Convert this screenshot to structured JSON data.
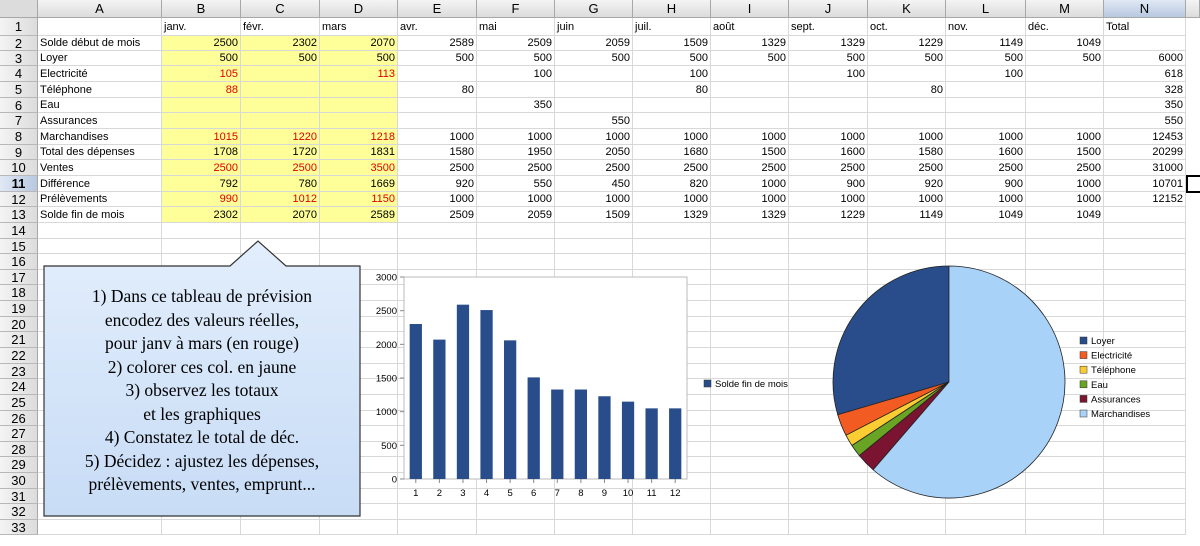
{
  "spreadsheet": {
    "columns": [
      "A",
      "B",
      "C",
      "D",
      "E",
      "F",
      "G",
      "H",
      "I",
      "J",
      "K",
      "L",
      "M",
      "N"
    ],
    "selected_column": "N",
    "selected_row": "11",
    "row_numbers": [
      "1",
      "2",
      "3",
      "4",
      "5",
      "6",
      "7",
      "8",
      "9",
      "10",
      "11",
      "12",
      "13",
      "14",
      "15",
      "16",
      "17",
      "18",
      "19",
      "20",
      "21",
      "22",
      "23",
      "24",
      "25",
      "26",
      "27",
      "28",
      "29",
      "30",
      "31",
      "32",
      "33"
    ],
    "month_headers": [
      "janv.",
      "févr.",
      "mars",
      "avr.",
      "mai",
      "juin",
      "juil.",
      "août",
      "sept.",
      "oct.",
      "nov.",
      "déc."
    ],
    "total_header": "Total",
    "rows": [
      {
        "label": "Solde début de mois",
        "values": [
          "2500",
          "2302",
          "2070",
          "2589",
          "2509",
          "2059",
          "1509",
          "1329",
          "1329",
          "1229",
          "1149",
          "1049"
        ],
        "red": [],
        "total": ""
      },
      {
        "label": "Loyer",
        "values": [
          "500",
          "500",
          "500",
          "500",
          "500",
          "500",
          "500",
          "500",
          "500",
          "500",
          "500",
          "500"
        ],
        "red": [],
        "total": "6000"
      },
      {
        "label": "Electricité",
        "values": [
          "105",
          "",
          "113",
          "",
          "100",
          "",
          "100",
          "",
          "100",
          "",
          "100",
          ""
        ],
        "red": [
          0,
          2
        ],
        "total": "618"
      },
      {
        "label": "Téléphone",
        "values": [
          "88",
          "",
          "",
          "80",
          "",
          "",
          "80",
          "",
          "",
          "80",
          "",
          ""
        ],
        "red": [
          0
        ],
        "total": "328"
      },
      {
        "label": "Eau",
        "values": [
          "",
          "",
          "",
          "",
          "350",
          "",
          "",
          "",
          "",
          "",
          "",
          ""
        ],
        "red": [],
        "total": "350"
      },
      {
        "label": "Assurances",
        "values": [
          "",
          "",
          "",
          "",
          "",
          "550",
          "",
          "",
          "",
          "",
          "",
          ""
        ],
        "red": [],
        "total": "550"
      },
      {
        "label": "Marchandises",
        "values": [
          "1015",
          "1220",
          "1218",
          "1000",
          "1000",
          "1000",
          "1000",
          "1000",
          "1000",
          "1000",
          "1000",
          "1000"
        ],
        "red": [
          0,
          1,
          2
        ],
        "total": "12453"
      },
      {
        "label": "Total des dépenses",
        "values": [
          "1708",
          "1720",
          "1831",
          "1580",
          "1950",
          "2050",
          "1680",
          "1500",
          "1600",
          "1580",
          "1600",
          "1500"
        ],
        "red": [],
        "total": "20299"
      },
      {
        "label": "Ventes",
        "values": [
          "2500",
          "2500",
          "3500",
          "2500",
          "2500",
          "2500",
          "2500",
          "2500",
          "2500",
          "2500",
          "2500",
          "2500"
        ],
        "red": [
          0,
          1,
          2
        ],
        "total": "31000"
      },
      {
        "label": "Différence",
        "values": [
          "792",
          "780",
          "1669",
          "920",
          "550",
          "450",
          "820",
          "1000",
          "900",
          "920",
          "900",
          "1000"
        ],
        "red": [],
        "total": "10701"
      },
      {
        "label": "Prélèvements",
        "values": [
          "990",
          "1012",
          "1150",
          "1000",
          "1000",
          "1000",
          "1000",
          "1000",
          "1000",
          "1000",
          "1000",
          "1000"
        ],
        "red": [
          0,
          1,
          2
        ],
        "total": "12152"
      },
      {
        "label": "Solde fin de mois",
        "values": [
          "2302",
          "2070",
          "2589",
          "2509",
          "2059",
          "1509",
          "1329",
          "1329",
          "1229",
          "1149",
          "1049",
          "1049"
        ],
        "red": [],
        "total": ""
      }
    ]
  },
  "callout": {
    "lines": [
      "1) Dans ce tableau de prévision",
      "encodez des valeurs réelles,",
      "pour janv à mars (en rouge)",
      "2) colorer ces col. en jaune",
      "3) observez les totaux",
      "et les graphiques",
      "4) Constatez le total de déc.",
      "5) Décidez : ajustez les dépenses,",
      "prélèvements, ventes, emprunt..."
    ]
  },
  "colors": {
    "yellow_fill": "#ffff99",
    "red_text": "#e00000",
    "callout_fill": "#d4e6fa",
    "bar_color": "#284d8a"
  },
  "chart_data": [
    {
      "type": "bar",
      "categories": [
        "1",
        "2",
        "3",
        "4",
        "5",
        "6",
        "7",
        "8",
        "9",
        "10",
        "11",
        "12"
      ],
      "series": [
        {
          "name": "Solde fin de mois",
          "values": [
            2302,
            2070,
            2589,
            2509,
            2059,
            1509,
            1329,
            1329,
            1229,
            1149,
            1049,
            1049
          ],
          "color": "#284d8a"
        }
      ],
      "ylim": [
        0,
        3000
      ],
      "yticks": [
        "0",
        "500",
        "1000",
        "1500",
        "2000",
        "2500",
        "3000"
      ],
      "grid": false,
      "legend": "right"
    },
    {
      "type": "pie",
      "categories": [
        "Loyer",
        "Electricité",
        "Téléphone",
        "Eau",
        "Assurances",
        "Marchandises"
      ],
      "values": [
        6000,
        618,
        328,
        350,
        550,
        12453
      ],
      "colors": [
        "#284d8a",
        "#f25c22",
        "#fccd32",
        "#6aa424",
        "#7a1430",
        "#a8d2f8"
      ],
      "legend": "right"
    }
  ]
}
